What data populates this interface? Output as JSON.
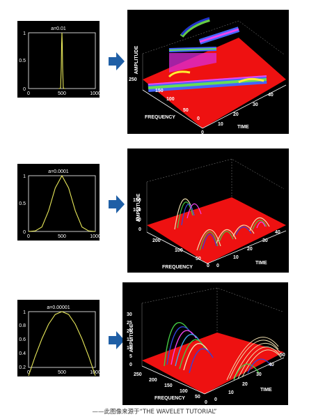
{
  "chart_data": [
    {
      "type": "line",
      "title": "a=0.01",
      "x": [
        450,
        470,
        480,
        490,
        495,
        500,
        505,
        510,
        520,
        530,
        550
      ],
      "values": [
        0,
        0,
        0.02,
        0.37,
        0.78,
        1,
        0.78,
        0.37,
        0.02,
        0,
        0
      ],
      "xlim": [
        0,
        1000
      ],
      "ylim": [
        0,
        1
      ],
      "xticks": [
        "0",
        "500",
        "1000"
      ],
      "yticks": [
        "0",
        "0.5",
        "1"
      ]
    },
    {
      "type": "surface",
      "zlabel": "AMPLITUDE",
      "xlabel": "FREQUENCY",
      "ylabel": "TIME",
      "zticks": [
        "250"
      ],
      "xticks": [
        "150",
        "100",
        "50",
        "0"
      ],
      "yticks": [
        "0",
        "10",
        "20",
        "30",
        "40"
      ]
    },
    {
      "type": "line",
      "title": "a=0.0001",
      "x": [
        0,
        100,
        200,
        300,
        400,
        500,
        600,
        700,
        800,
        900,
        1000
      ],
      "values": [
        0,
        0.01,
        0.08,
        0.37,
        0.78,
        1,
        0.78,
        0.37,
        0.08,
        0.01,
        0
      ],
      "xlim": [
        0,
        1000
      ],
      "ylim": [
        0,
        1
      ],
      "xticks": [
        "0",
        "500",
        "1000"
      ],
      "yticks": [
        "0",
        "0.5",
        "1"
      ]
    },
    {
      "type": "surface",
      "zlabel": "AMPLITUDE",
      "xlabel": "FREQUENCY",
      "ylabel": "TIME",
      "zticks": [
        "150",
        "100",
        "50",
        "0"
      ],
      "xticks": [
        "200",
        "100",
        "50",
        "0"
      ],
      "yticks": [
        "0",
        "10",
        "20",
        "30",
        "40"
      ]
    },
    {
      "type": "line",
      "title": "a=0.00001",
      "x": [
        0,
        100,
        200,
        300,
        400,
        500,
        600,
        700,
        800,
        900,
        1000
      ],
      "values": [
        0.08,
        0.36,
        0.61,
        0.82,
        0.96,
        1,
        0.96,
        0.82,
        0.61,
        0.36,
        0.08
      ],
      "xlim": [
        0,
        1000
      ],
      "ylim": [
        0.2,
        1
      ],
      "xticks": [
        "0",
        "500",
        "1000"
      ],
      "yticks": [
        "0.2",
        "0.4",
        "0.6",
        "0.8",
        "1"
      ]
    },
    {
      "type": "surface",
      "zlabel": "AMPLITUDE",
      "xlabel": "FREQUENCY",
      "ylabel": "TIME",
      "zticks": [
        "30",
        "25",
        "20",
        "15",
        "10",
        "5",
        "0"
      ],
      "xticks": [
        "250",
        "200",
        "150",
        "100",
        "50",
        "0"
      ],
      "yticks": [
        "0",
        "10",
        "20",
        "30",
        "40",
        "50"
      ]
    }
  ],
  "caption": "——此图像来源于“THE WAVELET TUTORIAL”",
  "colors": {
    "plot_bg": "#000000",
    "curve": "#e8e85a",
    "axes": "#ffffff",
    "arrow": "#1f5fa6",
    "surface_floor": "#ee1111"
  }
}
